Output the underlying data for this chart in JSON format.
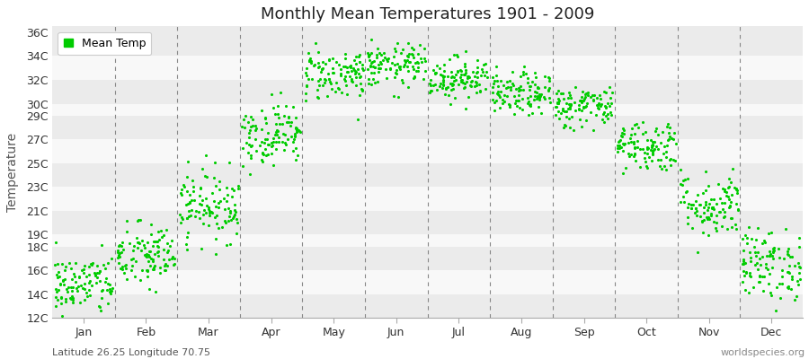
{
  "title": "Monthly Mean Temperatures 1901 - 2009",
  "ylabel": "Temperature",
  "subtitle_left": "Latitude 26.25 Longitude 70.75",
  "subtitle_right": "worldspecies.org",
  "legend_label": "Mean Temp",
  "dot_color": "#00cc00",
  "background_color": "#ffffff",
  "band_color_odd": "#ebebeb",
  "band_color_even": "#f8f8f8",
  "yticks": [
    12,
    14,
    16,
    18,
    19,
    21,
    23,
    25,
    27,
    29,
    30,
    32,
    34,
    36
  ],
  "ytick_labels": [
    "12C",
    "14C",
    "16C",
    "18C",
    "19C",
    "21C",
    "23C",
    "25C",
    "27C",
    "29C",
    "30C",
    "32C",
    "34C",
    "36C"
  ],
  "ymin": 12,
  "ymax": 36.5,
  "months": [
    "Jan",
    "Feb",
    "Mar",
    "Apr",
    "May",
    "Jun",
    "Jul",
    "Aug",
    "Sep",
    "Oct",
    "Nov",
    "Dec"
  ],
  "monthly_means": [
    14.8,
    17.2,
    21.5,
    27.5,
    32.5,
    33.2,
    32.2,
    30.8,
    29.8,
    26.5,
    21.5,
    16.5
  ],
  "monthly_stds": [
    1.3,
    1.4,
    1.5,
    1.3,
    1.1,
    0.9,
    0.9,
    0.9,
    0.9,
    1.1,
    1.4,
    1.5
  ],
  "n_years": 109,
  "seed": 42,
  "figwidth": 9.0,
  "figheight": 4.0,
  "dpi": 100
}
